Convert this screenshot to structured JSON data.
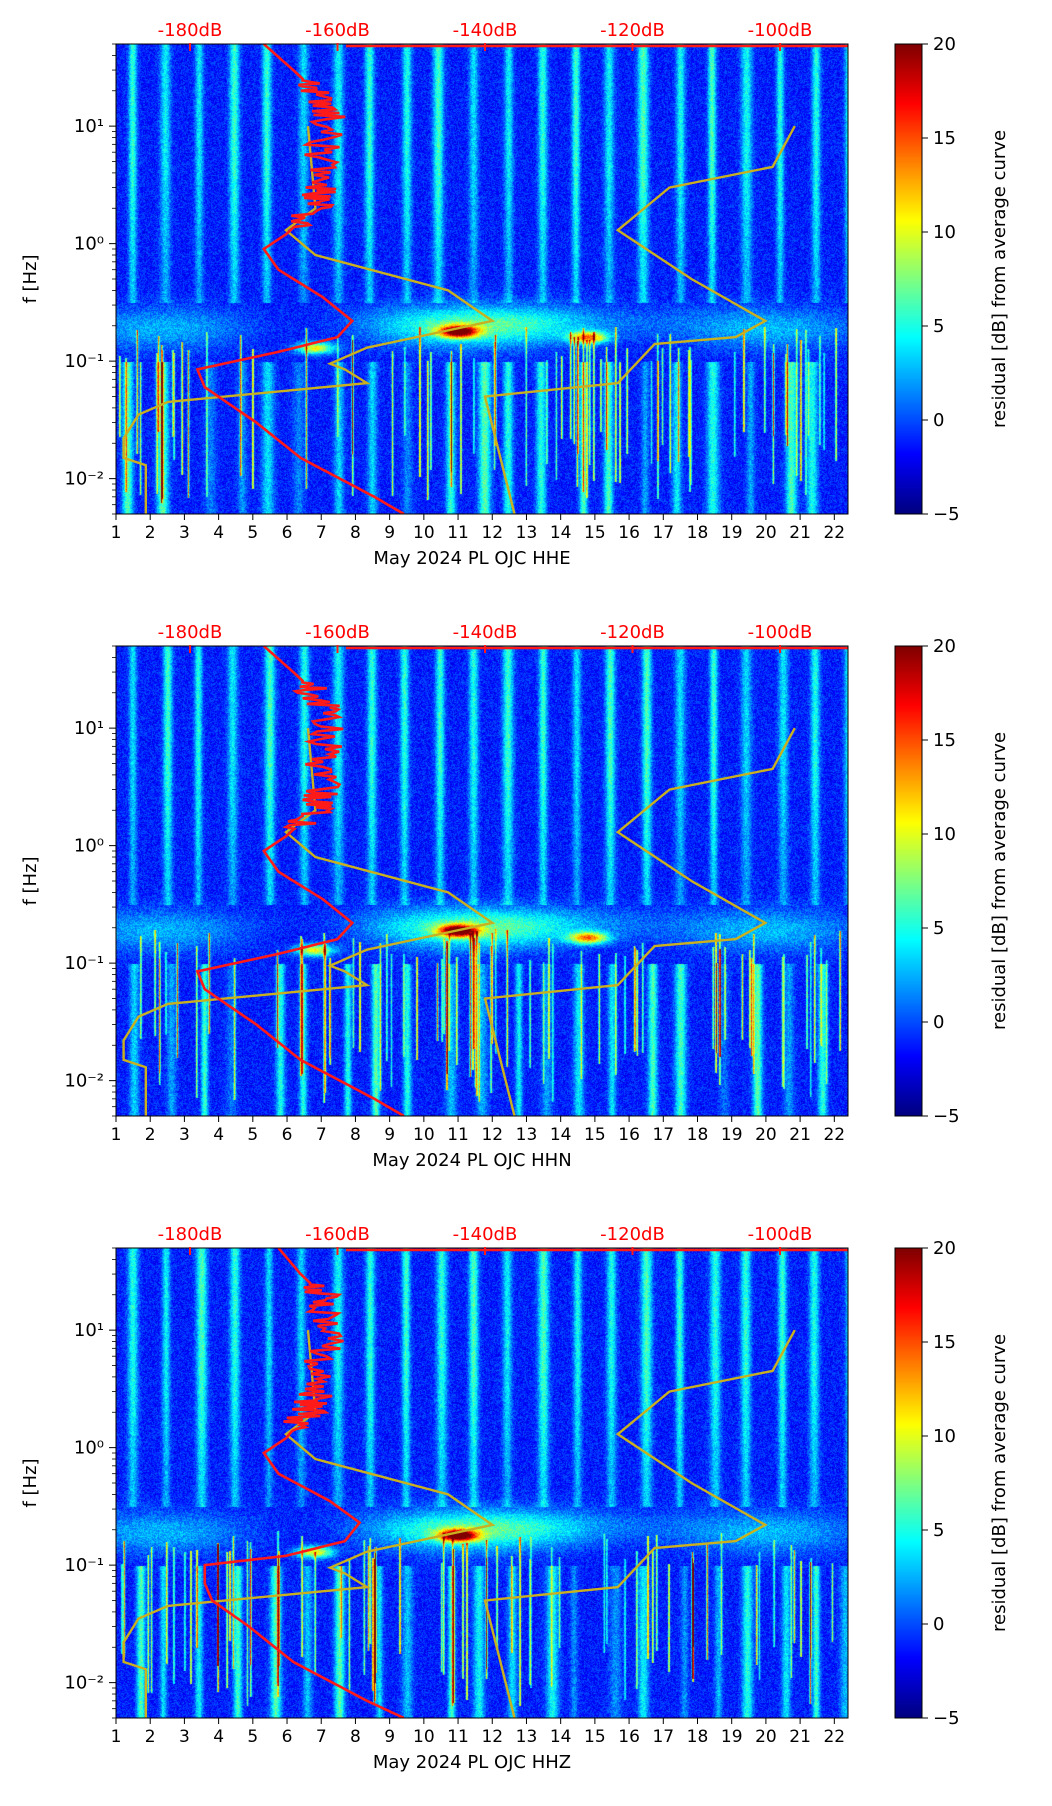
{
  "figure": {
    "db_axis_label_color": "#ff0000",
    "reference_curve_color": "#ff1a1a",
    "model_curve_color": "#c8b020"
  },
  "colorbar": {
    "label": "residual [dB] from average curve",
    "ticks": [
      20,
      15,
      10,
      5,
      0,
      -5
    ],
    "tick_labels": [
      "20",
      "15",
      "10",
      "5",
      "0",
      "−5"
    ],
    "range": [
      -5,
      20
    ],
    "colormap": "jet"
  },
  "chart_data": [
    {
      "type": "heatmap",
      "title": "",
      "xlabel": "May 2024 PL OJC  HHE",
      "ylabel": "f [Hz]",
      "component": "HHE",
      "xlim": [
        1,
        22.4
      ],
      "ylim": [
        0.005,
        50
      ],
      "x_ticks": [
        1,
        2,
        3,
        4,
        5,
        6,
        7,
        8,
        9,
        10,
        11,
        12,
        13,
        14,
        15,
        16,
        17,
        18,
        19,
        20,
        21,
        22
      ],
      "x_tick_labels": [
        "1",
        "2",
        "3",
        "4",
        "5",
        "6",
        "7",
        "8",
        "9",
        "10",
        "11",
        "12",
        "13",
        "14",
        "15",
        "16",
        "17",
        "18",
        "19",
        "20",
        "21",
        "22"
      ],
      "y_ticks": [
        10,
        1,
        0.1,
        0.01
      ],
      "y_tick_labels": [
        "10¹",
        "10⁰",
        "10⁻¹",
        "10⁻²"
      ],
      "db_ticks": [
        -180,
        -160,
        -140,
        -120,
        -100
      ],
      "db_tick_labels": [
        "-180dB",
        "-160dB",
        "-140dB",
        "-120dB",
        "-100dB"
      ],
      "average_curve_db": [
        [
          -170,
          50
        ],
        [
          -166,
          30
        ],
        [
          -163,
          20
        ],
        [
          -161,
          12
        ],
        [
          -162,
          6
        ],
        [
          -162,
          3
        ],
        [
          -163,
          2
        ],
        [
          -167,
          1.2
        ],
        [
          -170,
          0.9
        ],
        [
          -168,
          0.6
        ],
        [
          -162,
          0.35
        ],
        [
          -158,
          0.22
        ],
        [
          -160,
          0.16
        ],
        [
          -168,
          0.12
        ],
        [
          -179,
          0.085
        ],
        [
          -178,
          0.06
        ],
        [
          -171,
          0.03
        ],
        [
          -165,
          0.015
        ],
        [
          -155,
          0.007
        ],
        [
          -151,
          0.005
        ]
      ],
      "model_curves_db": [
        [
          [
            -164,
            10
          ],
          [
            -163,
            2
          ],
          [
            -167,
            1.3
          ],
          [
            -163,
            0.8
          ],
          [
            -145,
            0.4
          ],
          [
            -139,
            0.22
          ],
          [
            -156,
            0.13
          ],
          [
            -161,
            0.095
          ],
          [
            -159,
            0.085
          ],
          [
            -156,
            0.065
          ],
          [
            -183,
            0.045
          ],
          [
            -187,
            0.035
          ],
          [
            -189,
            0.022
          ],
          [
            -189,
            0.015
          ],
          [
            -186,
            0.013
          ],
          [
            -186,
            0.005
          ]
        ],
        [
          [
            -98,
            10
          ],
          [
            -101,
            4.5
          ],
          [
            -115,
            3
          ],
          [
            -122,
            1.3
          ],
          [
            -112,
            0.5
          ],
          [
            -102,
            0.22
          ],
          [
            -106,
            0.16
          ],
          [
            -117,
            0.14
          ],
          [
            -122,
            0.065
          ],
          [
            -140,
            0.05
          ],
          [
            -140,
            0.05
          ],
          [
            -136,
            0.005
          ]
        ]
      ],
      "high_residual_patches_hz": [
        [
          11,
          0.18,
          20
        ],
        [
          14.8,
          0.16,
          14
        ],
        [
          6.8,
          0.13,
          12
        ]
      ]
    },
    {
      "type": "heatmap",
      "title": "",
      "xlabel": "May 2024 PL OJC  HHN",
      "ylabel": "f [Hz]",
      "component": "HHN",
      "xlim": [
        1,
        22.4
      ],
      "ylim": [
        0.005,
        50
      ],
      "x_ticks": [
        1,
        2,
        3,
        4,
        5,
        6,
        7,
        8,
        9,
        10,
        11,
        12,
        13,
        14,
        15,
        16,
        17,
        18,
        19,
        20,
        21,
        22
      ],
      "x_tick_labels": [
        "1",
        "2",
        "3",
        "4",
        "5",
        "6",
        "7",
        "8",
        "9",
        "10",
        "11",
        "12",
        "13",
        "14",
        "15",
        "16",
        "17",
        "18",
        "19",
        "20",
        "21",
        "22"
      ],
      "y_ticks": [
        10,
        1,
        0.1,
        0.01
      ],
      "y_tick_labels": [
        "10¹",
        "10⁰",
        "10⁻¹",
        "10⁻²"
      ],
      "db_ticks": [
        -180,
        -160,
        -140,
        -120,
        -100
      ],
      "db_tick_labels": [
        "-180dB",
        "-160dB",
        "-140dB",
        "-120dB",
        "-100dB"
      ],
      "average_curve_db": [
        [
          -170,
          50
        ],
        [
          -166,
          30
        ],
        [
          -163,
          20
        ],
        [
          -161,
          12
        ],
        [
          -162,
          6
        ],
        [
          -162,
          3
        ],
        [
          -163,
          2
        ],
        [
          -167,
          1.2
        ],
        [
          -170,
          0.9
        ],
        [
          -168,
          0.6
        ],
        [
          -162,
          0.35
        ],
        [
          -158,
          0.22
        ],
        [
          -160,
          0.16
        ],
        [
          -168,
          0.12
        ],
        [
          -179,
          0.085
        ],
        [
          -178,
          0.06
        ],
        [
          -171,
          0.03
        ],
        [
          -165,
          0.015
        ],
        [
          -155,
          0.007
        ],
        [
          -151,
          0.005
        ]
      ],
      "model_curves_db": [
        [
          [
            -164,
            10
          ],
          [
            -163,
            2
          ],
          [
            -167,
            1.3
          ],
          [
            -163,
            0.8
          ],
          [
            -145,
            0.4
          ],
          [
            -139,
            0.22
          ],
          [
            -156,
            0.13
          ],
          [
            -161,
            0.095
          ],
          [
            -159,
            0.085
          ],
          [
            -156,
            0.065
          ],
          [
            -183,
            0.045
          ],
          [
            -187,
            0.035
          ],
          [
            -189,
            0.022
          ],
          [
            -189,
            0.015
          ],
          [
            -186,
            0.013
          ],
          [
            -186,
            0.005
          ]
        ],
        [
          [
            -98,
            10
          ],
          [
            -101,
            4.5
          ],
          [
            -115,
            3
          ],
          [
            -122,
            1.3
          ],
          [
            -112,
            0.5
          ],
          [
            -102,
            0.22
          ],
          [
            -106,
            0.16
          ],
          [
            -117,
            0.14
          ],
          [
            -122,
            0.065
          ],
          [
            -140,
            0.05
          ],
          [
            -140,
            0.05
          ],
          [
            -136,
            0.005
          ]
        ]
      ],
      "high_residual_patches_hz": [
        [
          11,
          0.19,
          20
        ],
        [
          14.8,
          0.165,
          14
        ],
        [
          6.8,
          0.13,
          12
        ]
      ]
    },
    {
      "type": "heatmap",
      "title": "",
      "xlabel": "May 2024 PL OJC  HHZ",
      "ylabel": "f [Hz]",
      "component": "HHZ",
      "xlim": [
        1,
        22.4
      ],
      "ylim": [
        0.005,
        50
      ],
      "x_ticks": [
        1,
        2,
        3,
        4,
        5,
        6,
        7,
        8,
        9,
        10,
        11,
        12,
        13,
        14,
        15,
        16,
        17,
        18,
        19,
        20,
        21,
        22
      ],
      "x_tick_labels": [
        "1",
        "2",
        "3",
        "4",
        "5",
        "6",
        "7",
        "8",
        "9",
        "10",
        "11",
        "12",
        "13",
        "14",
        "15",
        "16",
        "17",
        "18",
        "19",
        "20",
        "21",
        "22"
      ],
      "y_ticks": [
        10,
        1,
        0.1,
        0.01
      ],
      "y_tick_labels": [
        "10¹",
        "10⁰",
        "10⁻¹",
        "10⁻²"
      ],
      "db_ticks": [
        -180,
        -160,
        -140,
        -120,
        -100
      ],
      "db_tick_labels": [
        "-180dB",
        "-160dB",
        "-140dB",
        "-120dB",
        "-100dB"
      ],
      "average_curve_db": [
        [
          -168,
          50
        ],
        [
          -165,
          30
        ],
        [
          -162,
          20
        ],
        [
          -161,
          12
        ],
        [
          -162,
          6
        ],
        [
          -163,
          3
        ],
        [
          -164,
          2
        ],
        [
          -167,
          1.2
        ],
        [
          -170,
          0.9
        ],
        [
          -168,
          0.6
        ],
        [
          -161,
          0.35
        ],
        [
          -157,
          0.23
        ],
        [
          -159,
          0.16
        ],
        [
          -167,
          0.12
        ],
        [
          -178,
          0.1
        ],
        [
          -178,
          0.07
        ],
        [
          -177,
          0.05
        ],
        [
          -172,
          0.03
        ],
        [
          -166,
          0.015
        ],
        [
          -156,
          0.007
        ],
        [
          -151,
          0.005
        ]
      ],
      "model_curves_db": [
        [
          [
            -164,
            10
          ],
          [
            -163,
            2
          ],
          [
            -167,
            1.3
          ],
          [
            -163,
            0.8
          ],
          [
            -145,
            0.4
          ],
          [
            -139,
            0.22
          ],
          [
            -156,
            0.13
          ],
          [
            -161,
            0.095
          ],
          [
            -159,
            0.085
          ],
          [
            -156,
            0.065
          ],
          [
            -183,
            0.045
          ],
          [
            -187,
            0.035
          ],
          [
            -189,
            0.022
          ],
          [
            -189,
            0.015
          ],
          [
            -186,
            0.013
          ],
          [
            -186,
            0.005
          ]
        ],
        [
          [
            -98,
            10
          ],
          [
            -101,
            4.5
          ],
          [
            -115,
            3
          ],
          [
            -122,
            1.3
          ],
          [
            -112,
            0.5
          ],
          [
            -102,
            0.22
          ],
          [
            -106,
            0.16
          ],
          [
            -117,
            0.14
          ],
          [
            -122,
            0.065
          ],
          [
            -140,
            0.05
          ],
          [
            -140,
            0.05
          ],
          [
            -136,
            0.005
          ]
        ]
      ],
      "high_residual_patches_hz": [
        [
          11,
          0.18,
          20
        ],
        [
          6.8,
          0.13,
          12
        ]
      ]
    }
  ]
}
